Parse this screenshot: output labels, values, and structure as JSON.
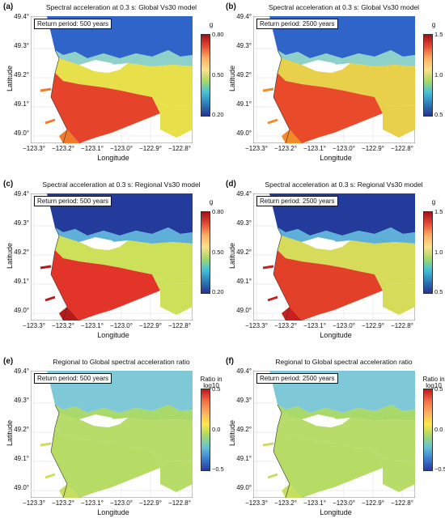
{
  "x_ticks": [
    "−123.3°",
    "−123.2°",
    "−123.1°",
    "−123.0°",
    "−122.9°",
    "−122.8°"
  ],
  "y_ticks": [
    "49.4°",
    "49.3°",
    "49.2°",
    "49.1°",
    "49.0°"
  ],
  "xlabel": "Longitude",
  "ylabel": "Latitude",
  "panels": [
    {
      "label": "(a)",
      "title": "Spectral acceleration at 0.3 s: Global Vs30 model",
      "return_period": "Return period: 500 years",
      "colorbar": {
        "unit": "g",
        "max": "0.80",
        "mid": "0.50",
        "min": "0.20",
        "colors": [
          "#a50f15",
          "#e34a33",
          "#fdae61",
          "#fee08b",
          "#a6d96a",
          "#45c1d8",
          "#2c7bb6",
          "#253494"
        ]
      }
    },
    {
      "label": "(b)",
      "title": "Spectral acceleration at 0.3 s: Global Vs30 model",
      "return_period": "Return period: 2500 years",
      "colorbar": {
        "unit": "g",
        "max": "1.5",
        "mid": "1.0",
        "min": "0.5",
        "colors": [
          "#a50f15",
          "#e34a33",
          "#fdae61",
          "#fee08b",
          "#a6d96a",
          "#45c1d8",
          "#2c7bb6",
          "#253494"
        ]
      }
    },
    {
      "label": "(c)",
      "title": "Spectral acceleration at 0.3 s: Regional Vs30 model",
      "return_period": "Return period: 500 years",
      "colorbar": {
        "unit": "g",
        "max": "0.80",
        "mid": "0.50",
        "min": "0.20",
        "colors": [
          "#a50f15",
          "#e34a33",
          "#fdae61",
          "#fee08b",
          "#a6d96a",
          "#45c1d8",
          "#2c7bb6",
          "#253494"
        ]
      }
    },
    {
      "label": "(d)",
      "title": "Spectral acceleration at 0.3 s: Regional Vs30 model",
      "return_period": "Return period: 2500 years",
      "colorbar": {
        "unit": "g",
        "max": "1.5",
        "mid": "1.0",
        "min": "0.5",
        "colors": [
          "#a50f15",
          "#e34a33",
          "#fdae61",
          "#fee08b",
          "#a6d96a",
          "#45c1d8",
          "#2c7bb6",
          "#253494"
        ]
      }
    },
    {
      "label": "(e)",
      "title": "Regional to Global spectral acceleration ratio",
      "return_period": "Return period: 500 years",
      "colorbar": {
        "unit": "Ratio in log10",
        "max": "0.5",
        "mid": "0.0",
        "min": "−0.5",
        "colors": [
          "#c0141c",
          "#f46d43",
          "#fdae61",
          "#ffe84a",
          "#a6d96a",
          "#66c2d8",
          "#3a7fd0",
          "#2b3aa0"
        ]
      }
    },
    {
      "label": "(f)",
      "title": "Regional to Global spectral acceleration ratio",
      "return_period": "Return period: 2500 years",
      "colorbar": {
        "unit": "Ratio in log10",
        "max": "0.5",
        "mid": "0.0",
        "min": "−0.5",
        "colors": [
          "#c0141c",
          "#f46d43",
          "#fdae61",
          "#ffe84a",
          "#a6d96a",
          "#66c2d8",
          "#3a7fd0",
          "#2b3aa0"
        ]
      }
    }
  ],
  "map_colors": {
    "a": {
      "north": "#2f64c8",
      "coast": "#8ed1c9",
      "mid": "#e8e04a",
      "south": "#e6442a",
      "delta": "#f07a2a"
    },
    "b": {
      "north": "#2f64c8",
      "coast": "#8ed1c9",
      "mid": "#e8d04a",
      "south": "#e84a2a",
      "delta": "#f28a2a"
    },
    "c": {
      "north": "#233c9c",
      "coast": "#5fb0d8",
      "mid": "#cde05a",
      "south": "#e3342a",
      "delta": "#b61a1a"
    },
    "d": {
      "north": "#233c9c",
      "coast": "#5fb0d8",
      "mid": "#d6dc5a",
      "south": "#e3402a",
      "delta": "#c82020"
    },
    "e": {
      "north": "#7ec8d8",
      "coast": "#a8d96a",
      "mid": "#b8dc6a",
      "south": "#b6dc66",
      "delta": "#c6df5e"
    },
    "f": {
      "north": "#7ec8d8",
      "coast": "#a8d96a",
      "mid": "#b8dc6a",
      "south": "#b6dc66",
      "delta": "#c6df5e"
    }
  }
}
